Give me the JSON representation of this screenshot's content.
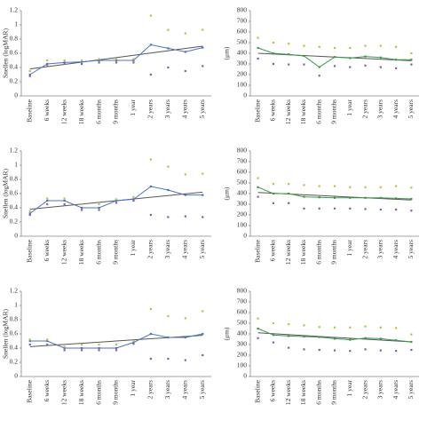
{
  "chart_data": [
    {
      "type": "line",
      "ylabel": "Snellen (logMAR)",
      "categories": [
        "Baseline",
        "6 weeks",
        "12 weeks",
        "18 weeks",
        "6 months",
        "9 months",
        "1 year",
        "2 years",
        "3 years",
        "4 years",
        "5 years"
      ],
      "ylim": [
        0,
        1.2
      ],
      "yticks": [
        0,
        0.2,
        0.4,
        0.6,
        0.8,
        1,
        1.2
      ],
      "series": [
        {
          "color": "#4a72c4",
          "mode": "lines+markers",
          "values": [
            0.3,
            0.45,
            0.47,
            0.48,
            0.5,
            0.5,
            0.5,
            0.72,
            0.67,
            0.62,
            0.68
          ]
        },
        {
          "color": "#b5c43a",
          "mode": "markers",
          "values": [
            0.35,
            0.5,
            0.5,
            0.5,
            0.52,
            0.52,
            0.52,
            1.13,
            0.93,
            0.88,
            0.93
          ]
        },
        {
          "color": "#8a5aa8",
          "mode": "markers",
          "values": [
            0.28,
            0.42,
            0.45,
            0.45,
            0.47,
            0.47,
            0.47,
            0.3,
            0.4,
            0.35,
            0.42
          ]
        }
      ],
      "trendline": {
        "color": "#555555",
        "values": [
          0.38,
          0.7
        ]
      }
    },
    {
      "type": "line",
      "ylabel": "(μm)",
      "categories": [
        "Baseline",
        "6 weeks",
        "12 weeks",
        "18 weeks",
        "6 months",
        "9 months",
        "1 year",
        "2 years",
        "3 years",
        "4 years",
        "5 years"
      ],
      "ylim": [
        0,
        800
      ],
      "yticks": [
        0,
        100,
        200,
        300,
        400,
        500,
        600,
        700,
        800
      ],
      "series": [
        {
          "color": "#3a9a4a",
          "mode": "lines+markers",
          "values": [
            450,
            400,
            390,
            375,
            270,
            365,
            355,
            370,
            360,
            340,
            340
          ]
        },
        {
          "color": "#b5c43a",
          "mode": "markers",
          "values": [
            545,
            500,
            490,
            470,
            460,
            450,
            450,
            470,
            470,
            460,
            400
          ]
        },
        {
          "color": "#8a5aa8",
          "mode": "markers",
          "values": [
            350,
            300,
            295,
            295,
            190,
            280,
            270,
            285,
            270,
            260,
            295
          ]
        }
      ],
      "trendline": {
        "color": "#555555",
        "values": [
          400,
          330
        ]
      }
    },
    {
      "type": "line",
      "ylabel": "Snellen (logMAR)",
      "categories": [
        "Baseline",
        "6 weeks",
        "12 weeks",
        "18 weeks",
        "6 months",
        "9 months",
        "1 year",
        "2 years",
        "3 years",
        "4 years",
        "5 years"
      ],
      "ylim": [
        0,
        1.2
      ],
      "yticks": [
        0,
        0.2,
        0.4,
        0.6,
        0.8,
        1,
        1.2
      ],
      "series": [
        {
          "color": "#4a72c4",
          "mode": "lines+markers",
          "values": [
            0.32,
            0.5,
            0.5,
            0.4,
            0.4,
            0.5,
            0.52,
            0.7,
            0.65,
            0.58,
            0.58
          ]
        },
        {
          "color": "#b5c43a",
          "mode": "markers",
          "values": [
            0.35,
            0.53,
            0.53,
            0.45,
            0.45,
            0.52,
            0.55,
            1.08,
            0.98,
            0.87,
            0.88
          ]
        },
        {
          "color": "#8a5aa8",
          "mode": "markers",
          "values": [
            0.3,
            0.45,
            0.45,
            0.37,
            0.37,
            0.47,
            0.5,
            0.3,
            0.27,
            0.28,
            0.27
          ]
        }
      ],
      "trendline": {
        "color": "#555555",
        "values": [
          0.38,
          0.62
        ]
      }
    },
    {
      "type": "line",
      "ylabel": "(μm)",
      "categories": [
        "Baseline",
        "6 weeks",
        "12 weeks",
        "18 weeks",
        "6 months",
        "9 months",
        "1 year",
        "2 years",
        "3 years",
        "4 years",
        "5 years"
      ],
      "ylim": [
        0,
        800
      ],
      "yticks": [
        0,
        100,
        200,
        300,
        400,
        500,
        600,
        700,
        800
      ],
      "series": [
        {
          "color": "#3a9a4a",
          "mode": "lines+markers",
          "values": [
            460,
            400,
            400,
            370,
            365,
            360,
            360,
            360,
            360,
            355,
            350
          ]
        },
        {
          "color": "#b5c43a",
          "mode": "markers",
          "values": [
            545,
            490,
            490,
            480,
            470,
            470,
            460,
            460,
            460,
            470,
            455
          ]
        },
        {
          "color": "#8a5aa8",
          "mode": "markers",
          "values": [
            370,
            310,
            310,
            260,
            260,
            260,
            260,
            255,
            250,
            250,
            240
          ]
        }
      ],
      "trendline": {
        "color": "#555555",
        "values": [
          410,
          340
        ]
      }
    },
    {
      "type": "line",
      "ylabel": "Snellen (logMAR)",
      "categories": [
        "Baseline",
        "6 weeks",
        "12 weeks",
        "18 weeks",
        "6 months",
        "9 months",
        "1 year",
        "2 years",
        "3 years",
        "4 years",
        "5 years"
      ],
      "ylim": [
        0,
        1.2
      ],
      "yticks": [
        0,
        0.2,
        0.4,
        0.6,
        0.8,
        1,
        1.2
      ],
      "series": [
        {
          "color": "#4a72c4",
          "mode": "lines+markers",
          "values": [
            0.5,
            0.5,
            0.4,
            0.4,
            0.4,
            0.4,
            0.48,
            0.6,
            0.55,
            0.55,
            0.6
          ]
        },
        {
          "color": "#b5c43a",
          "mode": "markers",
          "values": [
            0.52,
            0.52,
            0.42,
            0.45,
            0.45,
            0.45,
            0.5,
            0.95,
            0.85,
            0.82,
            0.92
          ]
        },
        {
          "color": "#8a5aa8",
          "mode": "markers",
          "values": [
            0.45,
            0.45,
            0.37,
            0.37,
            0.37,
            0.37,
            0.46,
            0.25,
            0.25,
            0.23,
            0.3
          ]
        }
      ],
      "trendline": {
        "color": "#555555",
        "values": [
          0.42,
          0.58
        ]
      }
    },
    {
      "type": "line",
      "ylabel": "(μm)",
      "categories": [
        "Baseline",
        "6 weeks",
        "12 weeks",
        "18 weeks",
        "6 months",
        "9 months",
        "1 year",
        "2 years",
        "3 years",
        "4 years",
        "5 years"
      ],
      "ylim": [
        0,
        800
      ],
      "yticks": [
        0,
        100,
        200,
        300,
        400,
        500,
        600,
        700,
        800
      ],
      "series": [
        {
          "color": "#3a9a4a",
          "mode": "lines+markers",
          "values": [
            450,
            390,
            380,
            375,
            370,
            355,
            345,
            360,
            355,
            340,
            325
          ]
        },
        {
          "color": "#b5c43a",
          "mode": "markers",
          "values": [
            545,
            500,
            490,
            480,
            465,
            460,
            460,
            470,
            460,
            455,
            395
          ]
        },
        {
          "color": "#8a5aa8",
          "mode": "markers",
          "values": [
            360,
            320,
            270,
            255,
            250,
            245,
            240,
            255,
            245,
            240,
            250
          ]
        }
      ],
      "trendline": {
        "color": "#555555",
        "values": [
          410,
          325
        ]
      }
    }
  ]
}
